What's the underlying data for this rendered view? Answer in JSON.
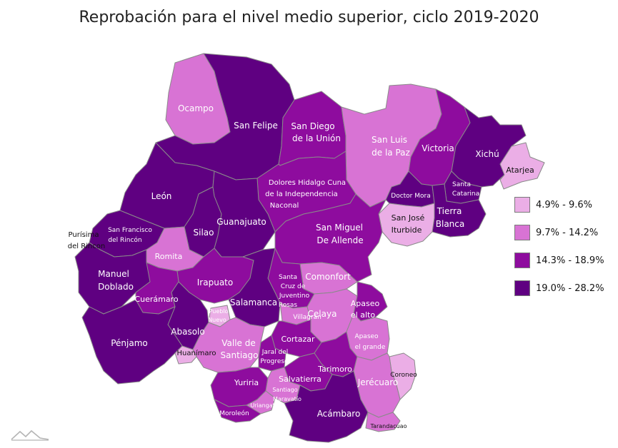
{
  "title": "Reprobación para el nivel medio superior, ciclo 2019-2020",
  "legend": [
    {
      "label": "4.9% - 9.6%",
      "color": "#EBAEE6"
    },
    {
      "label": "9.7% - 14.2%",
      "color": "#D873D4"
    },
    {
      "label": "14.3% - 18.9%",
      "color": "#8E0C9E"
    },
    {
      "label": "19.0% - 28.2%",
      "color": "#5F0081"
    }
  ],
  "municipios": {
    "ocampo": "Ocampo",
    "san_felipe": "San Felipe",
    "san_diego_1": "San Diego",
    "san_diego_2": "de la Unión",
    "san_luis_1": "San Luis",
    "san_luis_2": "de la Paz",
    "victoria": "Victoria",
    "xichu": "Xichú",
    "atarjea": "Atarjea",
    "leon": "León",
    "dolores_1": "Dolores Hidalgo Cuna",
    "dolores_2": "de la Independencia",
    "dolores_3": "Naconal",
    "doctor_mora": "Doctor Mora",
    "santa_catarina_1": "Santa",
    "santa_catarina_2": "Catarina",
    "tierra_blanca_1": "Tierra",
    "tierra_blanca_2": "Blanca",
    "san_jose_1": "San José",
    "san_jose_2": "Iturbide",
    "purisima_1": "Purísima",
    "purisima_2": "del Rincon",
    "san_francisco_1": "San Francisco",
    "san_francisco_2": "del Rincón",
    "silao": "Silao",
    "guanajuato": "Guanajuato",
    "san_miguel_1": "San Miguel",
    "san_miguel_2": "De Allende",
    "romita": "Romita",
    "manuel_doblado_1": "Manuel",
    "manuel_doblado_2": "Doblado",
    "irapuato": "Irapuato",
    "comonfort": "Comonfort",
    "santa_cruz_1": "Santa",
    "santa_cruz_2": "Cruz de",
    "santa_cruz_3": "Juventino",
    "santa_cruz_4": "Rosas",
    "cueramaro": "Cuerámaro",
    "salamanca": "Salamanca",
    "pueblo_nuevo_1": "Pueblo",
    "pueblo_nuevo_2": "Nuevo",
    "villagran": "Villagrán",
    "celaya": "Celaya",
    "apaseo_alto_1": "Apaseo",
    "apaseo_alto_2": "el alto",
    "abasolo": "Abasolo",
    "penjamo": "Pénjamo",
    "valle_1": "Valle de",
    "valle_2": "Santiago",
    "cortazar": "Cortazar",
    "apaseo_grande_1": "Apaseo",
    "apaseo_grande_2": "el grande",
    "huanimaro": "Huanímaro",
    "jaral_1": "Jaral del",
    "jaral_2": "Progreso",
    "tarimoro": "Tarimoro",
    "coroneo": "Coroneo",
    "jerecuaro": "Jerécuaro",
    "yuriria": "Yuriria",
    "salvatierra": "Salvatierra",
    "santiago_1": "Santiago",
    "santiago_2": "Maravatío",
    "uriangato": "Uriangato",
    "moroleon": "Moroleón",
    "acambaro": "Acámbaro",
    "tarandacuao": "Tarandacuao"
  }
}
